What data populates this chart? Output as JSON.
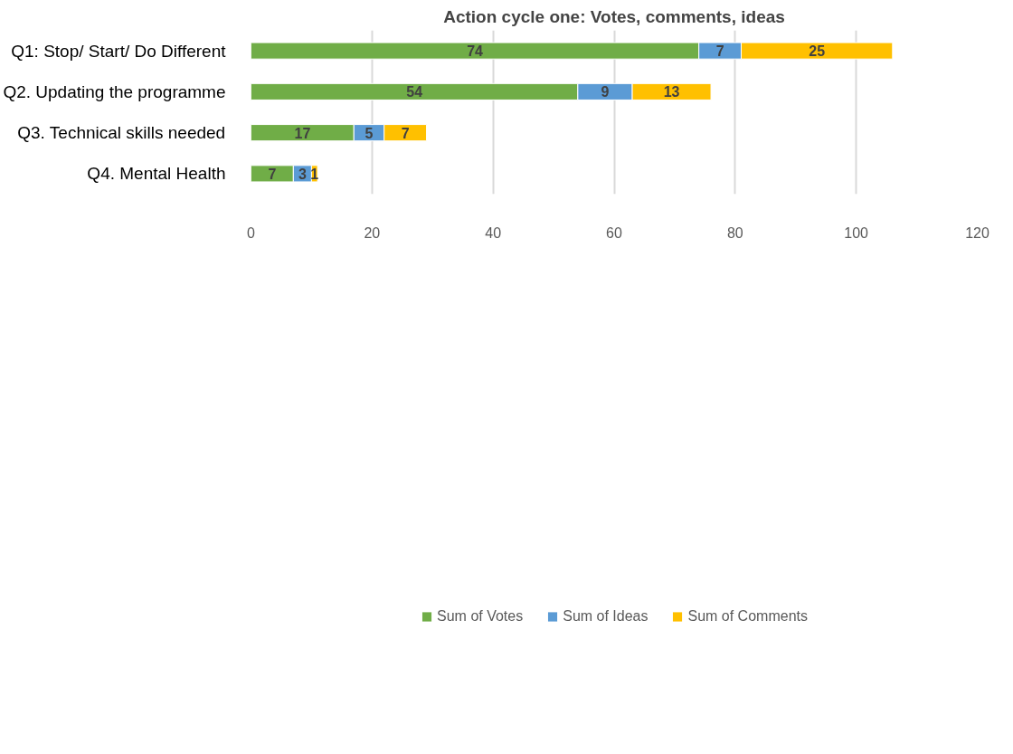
{
  "chart_data": {
    "type": "bar",
    "orientation": "horizontal",
    "stacked": true,
    "title": "Action cycle one: Votes, comments, ideas",
    "categories": [
      "Q1: Stop/ Start/ Do Different",
      "Q2. Updating the programme",
      "Q3. Technical skills needed",
      "Q4. Mental Health"
    ],
    "series": [
      {
        "name": "Sum of Votes",
        "color": "#70ad47",
        "values": [
          74,
          54,
          17,
          7
        ]
      },
      {
        "name": "Sum of Ideas",
        "color": "#5b9bd5",
        "values": [
          7,
          9,
          5,
          3
        ]
      },
      {
        "name": "Sum of Comments",
        "color": "#ffc000",
        "values": [
          25,
          13,
          7,
          1
        ]
      }
    ],
    "xlim": [
      0,
      120
    ],
    "xticks": [
      0,
      20,
      40,
      60,
      80,
      100,
      120
    ],
    "grid": "x",
    "legend": "bottom",
    "data_labels": true
  }
}
